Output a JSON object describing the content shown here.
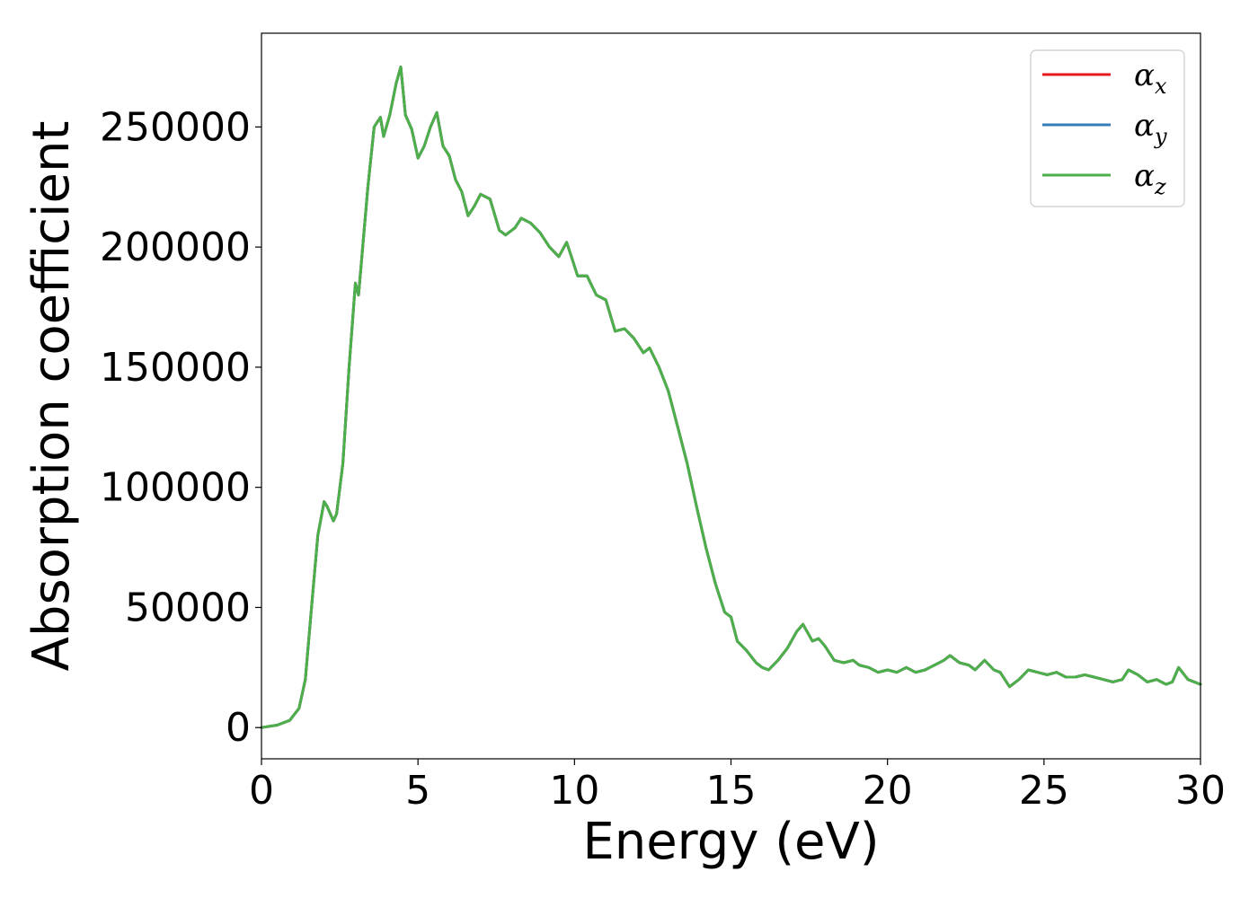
{
  "chart_data": {
    "type": "line",
    "title": "",
    "xlabel": "Energy (eV)",
    "ylabel": "Absorption coefficient",
    "xlim": [
      0,
      30
    ],
    "ylim": [
      -13000,
      289000
    ],
    "xticks": [
      0,
      5,
      10,
      15,
      20,
      25,
      30
    ],
    "xtick_labels": [
      "0",
      "5",
      "10",
      "15",
      "20",
      "25",
      "30"
    ],
    "yticks": [
      0,
      50000,
      100000,
      150000,
      200000,
      250000
    ],
    "ytick_labels": [
      "0",
      "50000",
      "100000",
      "150000",
      "200000",
      "250000"
    ],
    "grid": false,
    "legend_position": "top-right",
    "series_colors": [
      "#e41a1c",
      "#377eb8",
      "#4daf4a"
    ],
    "series": [
      {
        "name": "α",
        "subscript": "x",
        "color": "#e41a1c",
        "x": [
          0,
          0.5,
          0.9,
          1.2,
          1.4,
          1.6,
          1.8,
          2.0,
          2.1,
          2.3,
          2.4,
          2.6,
          2.8,
          3.0,
          3.1,
          3.2,
          3.4,
          3.6,
          3.8,
          3.9,
          4.1,
          4.3,
          4.45,
          4.6,
          4.8,
          5.0,
          5.2,
          5.4,
          5.6,
          5.8,
          6.0,
          6.2,
          6.4,
          6.6,
          6.8,
          7.0,
          7.3,
          7.6,
          7.8,
          8.1,
          8.3,
          8.6,
          8.9,
          9.2,
          9.5,
          9.75,
          9.9,
          10.1,
          10.4,
          10.7,
          11.0,
          11.3,
          11.6,
          11.9,
          12.2,
          12.4,
          12.7,
          13.0,
          13.3,
          13.6,
          13.9,
          14.2,
          14.5,
          14.8,
          15.0,
          15.2,
          15.5,
          15.8,
          16.0,
          16.2,
          16.5,
          16.8,
          17.1,
          17.3,
          17.6,
          17.8,
          18.0,
          18.3,
          18.6,
          18.9,
          19.1,
          19.4,
          19.7,
          20.0,
          20.3,
          20.6,
          20.9,
          21.2,
          21.5,
          21.8,
          22.0,
          22.3,
          22.6,
          22.8,
          23.1,
          23.4,
          23.6,
          23.9,
          24.2,
          24.5,
          24.8,
          25.1,
          25.4,
          25.7,
          26.0,
          26.3,
          26.6,
          26.9,
          27.2,
          27.5,
          27.7,
          28.0,
          28.3,
          28.6,
          28.9,
          29.1,
          29.3,
          29.6,
          30.0
        ],
        "values": [
          0,
          1000,
          3000,
          8000,
          20000,
          50000,
          80000,
          94000,
          92000,
          86000,
          89000,
          110000,
          150000,
          185000,
          180000,
          195000,
          225000,
          250000,
          254000,
          246000,
          255000,
          268000,
          275000,
          255000,
          249000,
          237000,
          242000,
          250000,
          256000,
          242000,
          238000,
          228000,
          223000,
          213000,
          217000,
          222000,
          220000,
          207000,
          205000,
          208000,
          212000,
          210000,
          206000,
          200000,
          196000,
          202000,
          196000,
          188000,
          188000,
          180000,
          178000,
          165000,
          166000,
          162000,
          156000,
          158000,
          150000,
          140000,
          125000,
          110000,
          92000,
          75000,
          60000,
          48000,
          46000,
          36000,
          32000,
          27000,
          25000,
          24000,
          28000,
          33000,
          40000,
          43000,
          36000,
          37000,
          34000,
          28000,
          27000,
          28000,
          26000,
          25000,
          23000,
          24000,
          23000,
          25000,
          23000,
          24000,
          26000,
          28000,
          30000,
          27000,
          26000,
          24000,
          28000,
          24000,
          23000,
          17000,
          20000,
          24000,
          23000,
          22000,
          23000,
          21000,
          21000,
          22000,
          21000,
          20000,
          19000,
          20000,
          24000,
          22000,
          19000,
          20000,
          18000,
          19000,
          25000,
          20000,
          18000
        ]
      },
      {
        "name": "α",
        "subscript": "y",
        "color": "#377eb8",
        "x": [
          0,
          0.5,
          0.9,
          1.2,
          1.4,
          1.6,
          1.8,
          2.0,
          2.1,
          2.3,
          2.4,
          2.6,
          2.8,
          3.0,
          3.1,
          3.2,
          3.4,
          3.6,
          3.8,
          3.9,
          4.1,
          4.3,
          4.45,
          4.6,
          4.8,
          5.0,
          5.2,
          5.4,
          5.6,
          5.8,
          6.0,
          6.2,
          6.4,
          6.6,
          6.8,
          7.0,
          7.3,
          7.6,
          7.8,
          8.1,
          8.3,
          8.6,
          8.9,
          9.2,
          9.5,
          9.75,
          9.9,
          10.1,
          10.4,
          10.7,
          11.0,
          11.3,
          11.6,
          11.9,
          12.2,
          12.4,
          12.7,
          13.0,
          13.3,
          13.6,
          13.9,
          14.2,
          14.5,
          14.8,
          15.0,
          15.2,
          15.5,
          15.8,
          16.0,
          16.2,
          16.5,
          16.8,
          17.1,
          17.3,
          17.6,
          17.8,
          18.0,
          18.3,
          18.6,
          18.9,
          19.1,
          19.4,
          19.7,
          20.0,
          20.3,
          20.6,
          20.9,
          21.2,
          21.5,
          21.8,
          22.0,
          22.3,
          22.6,
          22.8,
          23.1,
          23.4,
          23.6,
          23.9,
          24.2,
          24.5,
          24.8,
          25.1,
          25.4,
          25.7,
          26.0,
          26.3,
          26.6,
          26.9,
          27.2,
          27.5,
          27.7,
          28.0,
          28.3,
          28.6,
          28.9,
          29.1,
          29.3,
          29.6,
          30.0
        ],
        "values": [
          0,
          1000,
          3000,
          8000,
          20000,
          50000,
          80000,
          94000,
          92000,
          86000,
          89000,
          110000,
          150000,
          185000,
          180000,
          195000,
          225000,
          250000,
          254000,
          246000,
          255000,
          268000,
          275000,
          255000,
          249000,
          237000,
          242000,
          250000,
          256000,
          242000,
          238000,
          228000,
          223000,
          213000,
          217000,
          222000,
          220000,
          207000,
          205000,
          208000,
          212000,
          210000,
          206000,
          200000,
          196000,
          202000,
          196000,
          188000,
          188000,
          180000,
          178000,
          165000,
          166000,
          162000,
          156000,
          158000,
          150000,
          140000,
          125000,
          110000,
          92000,
          75000,
          60000,
          48000,
          46000,
          36000,
          32000,
          27000,
          25000,
          24000,
          28000,
          33000,
          40000,
          43000,
          36000,
          37000,
          34000,
          28000,
          27000,
          28000,
          26000,
          25000,
          23000,
          24000,
          23000,
          25000,
          23000,
          24000,
          26000,
          28000,
          30000,
          27000,
          26000,
          24000,
          28000,
          24000,
          23000,
          17000,
          20000,
          24000,
          23000,
          22000,
          23000,
          21000,
          21000,
          22000,
          21000,
          20000,
          19000,
          20000,
          24000,
          22000,
          19000,
          20000,
          18000,
          19000,
          25000,
          20000,
          18000
        ]
      },
      {
        "name": "α",
        "subscript": "z",
        "color": "#4daf4a",
        "x": [
          0,
          0.5,
          0.9,
          1.2,
          1.4,
          1.6,
          1.8,
          2.0,
          2.1,
          2.3,
          2.4,
          2.6,
          2.8,
          3.0,
          3.1,
          3.2,
          3.4,
          3.6,
          3.8,
          3.9,
          4.1,
          4.3,
          4.45,
          4.6,
          4.8,
          5.0,
          5.2,
          5.4,
          5.6,
          5.8,
          6.0,
          6.2,
          6.4,
          6.6,
          6.8,
          7.0,
          7.3,
          7.6,
          7.8,
          8.1,
          8.3,
          8.6,
          8.9,
          9.2,
          9.5,
          9.75,
          9.9,
          10.1,
          10.4,
          10.7,
          11.0,
          11.3,
          11.6,
          11.9,
          12.2,
          12.4,
          12.7,
          13.0,
          13.3,
          13.6,
          13.9,
          14.2,
          14.5,
          14.8,
          15.0,
          15.2,
          15.5,
          15.8,
          16.0,
          16.2,
          16.5,
          16.8,
          17.1,
          17.3,
          17.6,
          17.8,
          18.0,
          18.3,
          18.6,
          18.9,
          19.1,
          19.4,
          19.7,
          20.0,
          20.3,
          20.6,
          20.9,
          21.2,
          21.5,
          21.8,
          22.0,
          22.3,
          22.6,
          22.8,
          23.1,
          23.4,
          23.6,
          23.9,
          24.2,
          24.5,
          24.8,
          25.1,
          25.4,
          25.7,
          26.0,
          26.3,
          26.6,
          26.9,
          27.2,
          27.5,
          27.7,
          28.0,
          28.3,
          28.6,
          28.9,
          29.1,
          29.3,
          29.6,
          30.0
        ],
        "values": [
          0,
          1000,
          3000,
          8000,
          20000,
          50000,
          80000,
          94000,
          92000,
          86000,
          89000,
          110000,
          150000,
          185000,
          180000,
          195000,
          225000,
          250000,
          254000,
          246000,
          255000,
          268000,
          275000,
          255000,
          249000,
          237000,
          242000,
          250000,
          256000,
          242000,
          238000,
          228000,
          223000,
          213000,
          217000,
          222000,
          220000,
          207000,
          205000,
          208000,
          212000,
          210000,
          206000,
          200000,
          196000,
          202000,
          196000,
          188000,
          188000,
          180000,
          178000,
          165000,
          166000,
          162000,
          156000,
          158000,
          150000,
          140000,
          125000,
          110000,
          92000,
          75000,
          60000,
          48000,
          46000,
          36000,
          32000,
          27000,
          25000,
          24000,
          28000,
          33000,
          40000,
          43000,
          36000,
          37000,
          34000,
          28000,
          27000,
          28000,
          26000,
          25000,
          23000,
          24000,
          23000,
          25000,
          23000,
          24000,
          26000,
          28000,
          30000,
          27000,
          26000,
          24000,
          28000,
          24000,
          23000,
          17000,
          20000,
          24000,
          23000,
          22000,
          23000,
          21000,
          21000,
          22000,
          21000,
          20000,
          19000,
          20000,
          24000,
          22000,
          19000,
          20000,
          18000,
          19000,
          25000,
          20000,
          18000
        ]
      }
    ]
  }
}
